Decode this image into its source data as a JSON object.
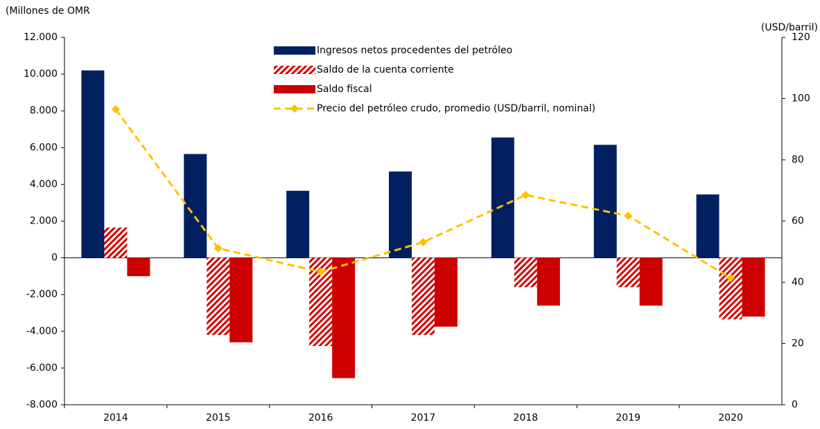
{
  "chart_data": {
    "type": "bar",
    "y_label": "(Millones de OMR",
    "y2_label": "(USD/barril)",
    "categories": [
      "2014",
      "2015",
      "2016",
      "2017",
      "2018",
      "2019",
      "2020"
    ],
    "series": [
      {
        "name": "Ingresos netos procedentes del petróleo",
        "color": "#002060",
        "values": [
          10200,
          5650,
          3650,
          4700,
          6550,
          6150,
          3450
        ]
      },
      {
        "name": "Saldo de la cuenta corriente",
        "color": "#d40000",
        "hatch": true,
        "values": [
          1650,
          -4200,
          -4800,
          -4200,
          -1600,
          -1600,
          -3350
        ]
      },
      {
        "name": "Saldo fiscal",
        "color": "#cc0000",
        "values": [
          -1000,
          -4600,
          -6550,
          -3750,
          -2600,
          -2600,
          -3200
        ]
      },
      {
        "name": "Precio del petróleo crudo, promedio  (USD/barril, nominal)",
        "color": "#ffc000",
        "type": "line",
        "axis": "y2",
        "dashed": true,
        "values": [
          96.5,
          51.1,
          43.4,
          53.1,
          68.5,
          61.7,
          41.4
        ]
      }
    ],
    "ylim": [
      -8000,
      12000
    ],
    "yticks": [
      {
        "value": -8000,
        "label": "-8.000"
      },
      {
        "value": -6000,
        "label": "-6.000"
      },
      {
        "value": -4000,
        "label": "-4.000"
      },
      {
        "value": -2000,
        "label": "-2.000"
      },
      0,
      {
        "value": 2000,
        "label": "2.000"
      },
      {
        "value": 4000,
        "label": "4.000"
      },
      {
        "value": 6000,
        "label": "6.000"
      },
      {
        "value": 8000,
        "label": "8.000"
      },
      {
        "value": 10000,
        "label": "10.000"
      },
      {
        "value": 12000,
        "label": "12.000"
      }
    ],
    "y2lim": [
      0,
      120
    ],
    "y2ticks": [
      0,
      20,
      40,
      60,
      80,
      100,
      120
    ],
    "grid": false,
    "legend": "top"
  }
}
